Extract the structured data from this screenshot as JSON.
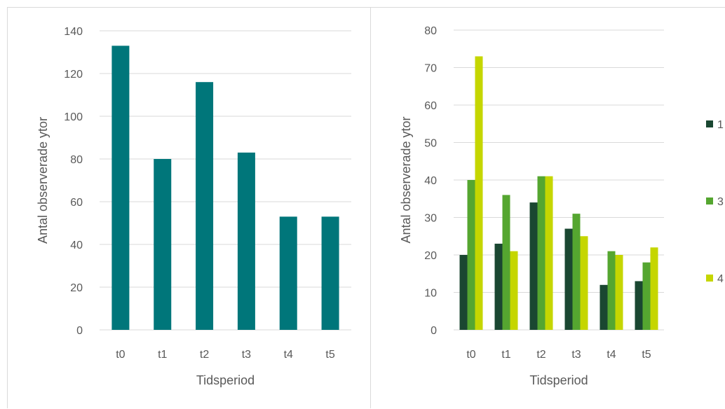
{
  "chart_data": [
    {
      "type": "bar",
      "title": "",
      "xlabel": "Tidsperiod",
      "ylabel": "Antal observerade ytor",
      "ylim": [
        0,
        140
      ],
      "yticks": [
        0,
        20,
        40,
        60,
        80,
        100,
        120,
        140
      ],
      "grid": true,
      "categories": [
        "t0",
        "t1",
        "t2",
        "t3",
        "t4",
        "t5"
      ],
      "colors": {
        "bar": "#00767a",
        "grid": "#d9d9d9",
        "axis": "#d9d9d9",
        "text": "#595959"
      },
      "series": [
        {
          "values": [
            133,
            80,
            116,
            83,
            53,
            53
          ]
        }
      ]
    },
    {
      "type": "bar",
      "title": "",
      "xlabel": "Tidsperiod",
      "ylabel": "Antal observerade ytor",
      "ylim": [
        0,
        80
      ],
      "yticks": [
        0,
        10,
        20,
        30,
        40,
        50,
        60,
        70,
        80
      ],
      "grid": true,
      "legend": "right",
      "categories": [
        "t0",
        "t1",
        "t2",
        "t3",
        "t4",
        "t5"
      ],
      "colors": {
        "grid": "#d9d9d9",
        "axis": "#d9d9d9",
        "text": "#595959"
      },
      "series": [
        {
          "name": "1",
          "color": "#1a4731",
          "values": [
            20,
            23,
            34,
            27,
            12,
            13
          ]
        },
        {
          "name": "3",
          "color": "#55a630",
          "values": [
            40,
            36,
            41,
            31,
            21,
            18
          ]
        },
        {
          "name": "4",
          "color": "#c5d600",
          "values": [
            73,
            21,
            41,
            25,
            20,
            22
          ]
        }
      ]
    }
  ]
}
